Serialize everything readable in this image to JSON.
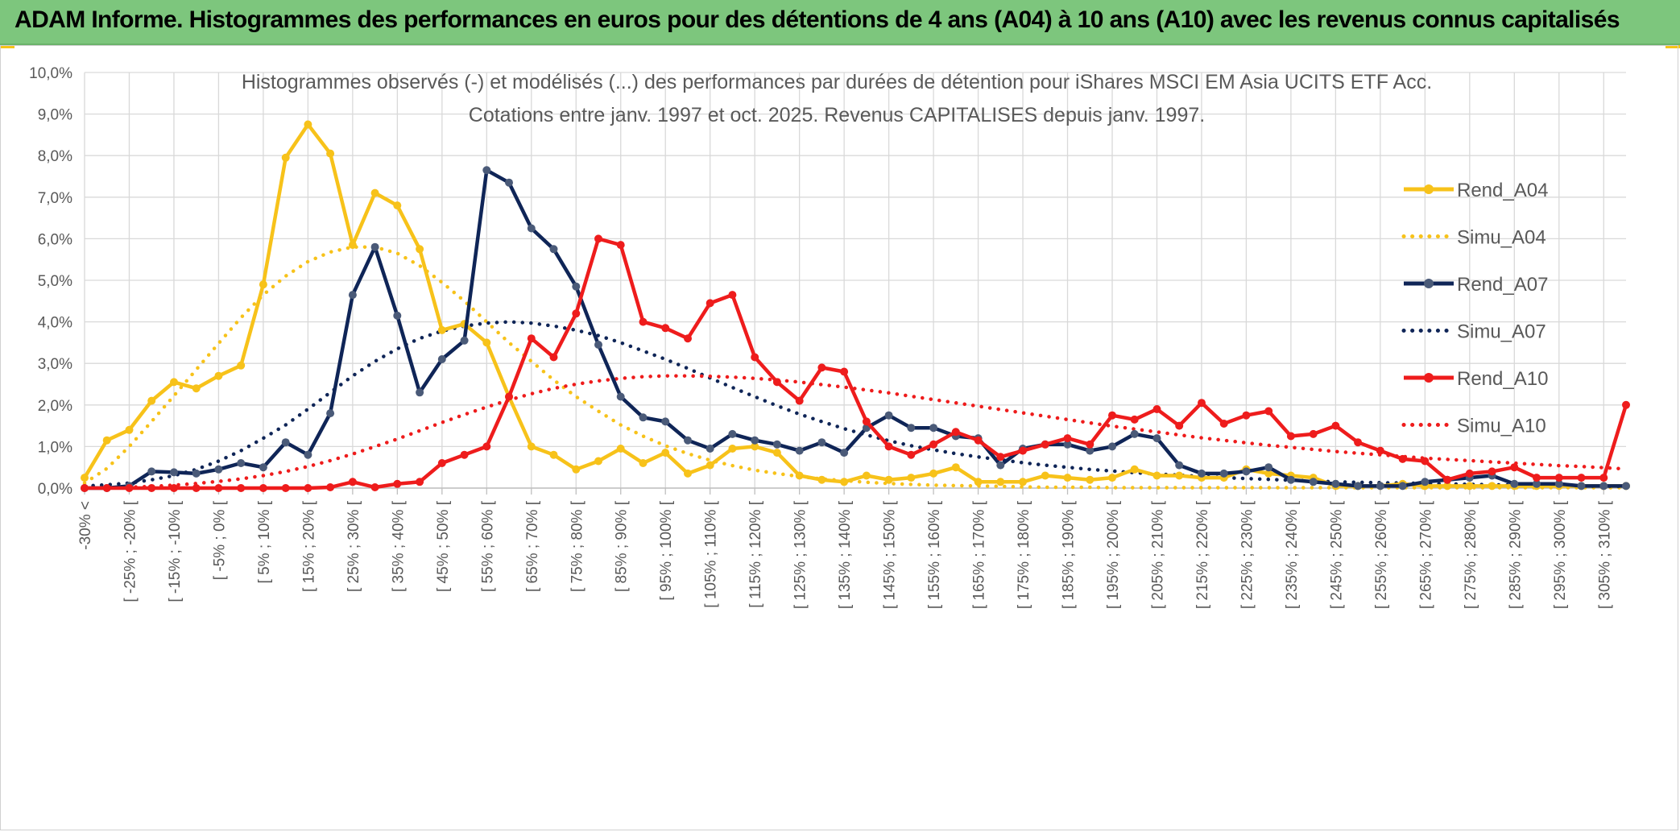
{
  "banner": {
    "title": "ADAM Informe. Histogrammes des performances en euros pour des détentions de 4 ans (A04) à 10 ans (A10) avec les revenus connus capitalisés"
  },
  "colors": {
    "banner_bg": "#7dc67d",
    "a04": "#f7c21a",
    "a07": "#0f2557",
    "a10": "#ee1c1c",
    "grid": "#d9d9d9",
    "text": "#595959"
  },
  "chart_data": {
    "type": "line",
    "title": "Histogrammes observés (-) et modélisés (...) des performances par durées de détention pour iShares MSCI EM Asia UCITS ETF Acc.",
    "subtitle": "Cotations entre janv. 1997 et oct. 2025. Revenus CAPITALISES depuis janv. 1997.",
    "xlabel": "",
    "ylabel": "",
    "ylim": [
      0,
      10
    ],
    "y_ticks": [
      "0,0%",
      "1,0%",
      "2,0%",
      "3,0%",
      "4,0%",
      "5,0%",
      "6,0%",
      "7,0%",
      "8,0%",
      "9,0%",
      "10,0%"
    ],
    "grid": true,
    "legend_position": "top-right",
    "x_tick_labels": [
      "-30% <",
      "[ -25% ; -20% [",
      "[ -15% ; -10% [",
      "[ -5% ; 0% [",
      "[ 5% ; 10% [",
      "[ 15% ; 20% [",
      "[ 25% ; 30% [",
      "[ 35% ; 40% [",
      "[ 45% ; 50% [",
      "[ 55% ; 60% [",
      "[ 65% ; 70% [",
      "[ 75% ; 80% [",
      "[ 85% ; 90% [",
      "[ 95% ; 100% [",
      "[ 105% ; 110% [",
      "[ 115% ; 120% [",
      "[ 125% ; 130% [",
      "[ 135% ; 140% [",
      "[ 145% ; 150% [",
      "[ 155% ; 160% [",
      "[ 165% ; 170% [",
      "[ 175% ; 180% [",
      "[ 185% ; 190% [",
      "[ 195% ; 200% [",
      "[ 205% ; 210% [",
      "[ 215% ; 220% [",
      "[ 225% ; 230% [",
      "[ 235% ; 240% [",
      "[ 245% ; 250% [",
      "[ 255% ; 260% [",
      "[ 265% ; 270% [",
      "[ 275% ; 280% [",
      "[ 285% ; 290% [",
      "[ 295% ; 300% [",
      "[ 305% ; 310% ["
    ],
    "series": [
      {
        "name": "Rend_A04",
        "style": "solid",
        "color": "#f7c21a",
        "values": [
          0.25,
          1.15,
          1.4,
          2.1,
          2.55,
          2.4,
          2.7,
          2.95,
          4.9,
          7.95,
          8.75,
          8.05,
          5.85,
          7.1,
          6.8,
          5.75,
          3.8,
          3.95,
          3.5,
          2.2,
          1.0,
          0.8,
          0.45,
          0.65,
          0.95,
          0.6,
          0.85,
          0.35,
          0.55,
          0.95,
          1.0,
          0.85,
          0.3,
          0.2,
          0.15,
          0.3,
          0.2,
          0.25,
          0.35,
          0.5,
          0.15,
          0.15,
          0.15,
          0.3,
          0.25,
          0.2,
          0.25,
          0.45,
          0.3,
          0.3,
          0.25,
          0.25,
          0.45,
          0.35,
          0.3,
          0.25,
          0.05,
          0.05,
          0.05,
          0.1,
          0.05,
          0.05,
          0.05,
          0.05,
          0.05,
          0.05,
          0.05,
          0.05,
          0.05,
          0.05
        ]
      },
      {
        "name": "Simu_A04",
        "style": "dotted",
        "color": "#f7c21a",
        "values": [
          0.12,
          0.47,
          1.0,
          1.6,
          2.22,
          2.85,
          3.48,
          4.1,
          4.65,
          5.1,
          5.45,
          5.68,
          5.8,
          5.8,
          5.65,
          5.35,
          4.95,
          4.5,
          4.0,
          3.5,
          3.05,
          2.6,
          2.2,
          1.85,
          1.52,
          1.25,
          1.02,
          0.83,
          0.67,
          0.54,
          0.43,
          0.35,
          0.28,
          0.22,
          0.18,
          0.14,
          0.11,
          0.09,
          0.07,
          0.06,
          0.05,
          0.04,
          0.03,
          0.02,
          0.02,
          0.02,
          0.01,
          0.01,
          0.01,
          0.01,
          0.01,
          0.01,
          0.01,
          0.01,
          0.01,
          0.01,
          0.01,
          0.01,
          0.01,
          0.01,
          0.01,
          0.01,
          0.01,
          0.01,
          0.01,
          0.01,
          0.01,
          0.01,
          0.01,
          0.01
        ]
      },
      {
        "name": "Rend_A07",
        "style": "solid",
        "color": "#0f2557",
        "values": [
          0.0,
          0.0,
          0.05,
          0.4,
          0.38,
          0.35,
          0.45,
          0.6,
          0.5,
          1.1,
          0.8,
          1.8,
          4.65,
          5.8,
          4.15,
          2.3,
          3.1,
          3.55,
          7.65,
          7.35,
          6.25,
          5.75,
          4.85,
          3.45,
          2.2,
          1.7,
          1.6,
          1.15,
          0.95,
          1.3,
          1.15,
          1.05,
          0.9,
          1.1,
          0.85,
          1.45,
          1.75,
          1.45,
          1.45,
          1.25,
          1.2,
          0.55,
          0.95,
          1.05,
          1.05,
          0.9,
          1.0,
          1.3,
          1.2,
          0.55,
          0.35,
          0.35,
          0.4,
          0.5,
          0.2,
          0.15,
          0.1,
          0.05,
          0.05,
          0.05,
          0.15,
          0.2,
          0.25,
          0.3,
          0.1,
          0.1,
          0.1,
          0.05,
          0.05,
          0.05
        ]
      },
      {
        "name": "Simu_A07",
        "style": "dotted",
        "color": "#0f2557",
        "values": [
          0.05,
          0.08,
          0.12,
          0.2,
          0.3,
          0.45,
          0.65,
          0.9,
          1.2,
          1.52,
          1.9,
          2.3,
          2.7,
          3.05,
          3.35,
          3.6,
          3.78,
          3.9,
          3.97,
          4.0,
          3.97,
          3.9,
          3.8,
          3.67,
          3.5,
          3.3,
          3.1,
          2.88,
          2.65,
          2.42,
          2.2,
          1.98,
          1.78,
          1.6,
          1.43,
          1.28,
          1.14,
          1.02,
          0.92,
          0.83,
          0.75,
          0.68,
          0.61,
          0.55,
          0.5,
          0.45,
          0.41,
          0.37,
          0.34,
          0.31,
          0.28,
          0.25,
          0.23,
          0.21,
          0.19,
          0.17,
          0.15,
          0.14,
          0.13,
          0.12,
          0.11,
          0.1,
          0.09,
          0.08,
          0.07,
          0.06,
          0.05,
          0.05,
          0.04,
          0.04
        ]
      },
      {
        "name": "Rend_A10",
        "style": "solid",
        "color": "#ee1c1c",
        "values": [
          0.0,
          0.0,
          0.0,
          0.0,
          0.0,
          0.0,
          0.0,
          0.0,
          0.0,
          0.0,
          0.0,
          0.02,
          0.15,
          0.02,
          0.1,
          0.15,
          0.6,
          0.8,
          1.0,
          2.2,
          3.6,
          3.15,
          4.2,
          6.0,
          5.85,
          4.0,
          3.85,
          3.6,
          4.45,
          4.65,
          3.15,
          2.55,
          2.1,
          2.9,
          2.8,
          1.6,
          1.0,
          0.8,
          1.05,
          1.35,
          1.15,
          0.75,
          0.9,
          1.05,
          1.2,
          1.05,
          1.75,
          1.65,
          1.9,
          1.5,
          2.05,
          1.55,
          1.75,
          1.85,
          1.25,
          1.3,
          1.5,
          1.1,
          0.9,
          0.7,
          0.65,
          0.2,
          0.35,
          0.4,
          0.5,
          0.25,
          0.25,
          0.25,
          0.25,
          2.0
        ]
      },
      {
        "name": "Simu_A10",
        "style": "dotted",
        "color": "#ee1c1c",
        "values": [
          0.0,
          0.01,
          0.02,
          0.04,
          0.07,
          0.11,
          0.16,
          0.22,
          0.3,
          0.4,
          0.52,
          0.66,
          0.82,
          1.0,
          1.18,
          1.38,
          1.58,
          1.77,
          1.95,
          2.12,
          2.27,
          2.4,
          2.5,
          2.58,
          2.64,
          2.68,
          2.7,
          2.7,
          2.69,
          2.67,
          2.64,
          2.6,
          2.55,
          2.49,
          2.43,
          2.36,
          2.29,
          2.21,
          2.13,
          2.05,
          1.97,
          1.89,
          1.81,
          1.73,
          1.65,
          1.57,
          1.49,
          1.42,
          1.35,
          1.28,
          1.21,
          1.15,
          1.09,
          1.03,
          0.98,
          0.93,
          0.88,
          0.84,
          0.8,
          0.76,
          0.72,
          0.69,
          0.66,
          0.63,
          0.6,
          0.57,
          0.54,
          0.52,
          0.49,
          0.46
        ]
      }
    ]
  }
}
